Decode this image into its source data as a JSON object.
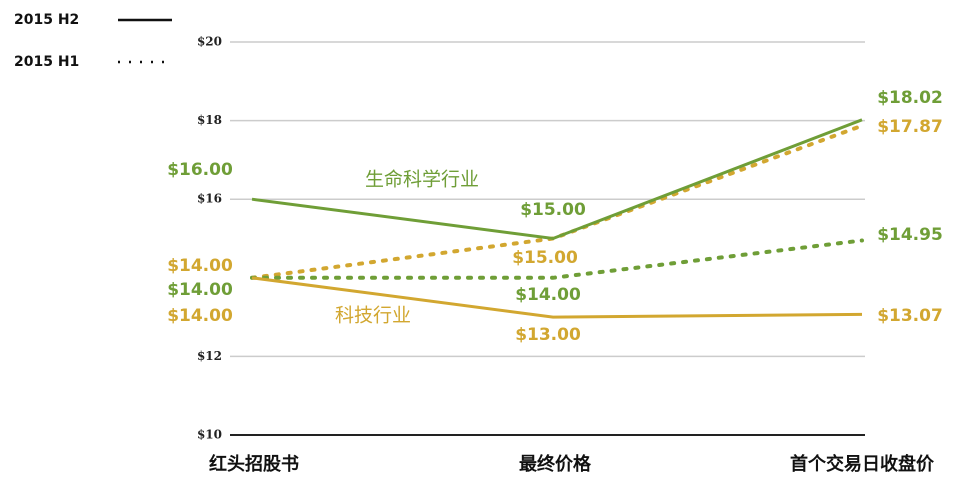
{
  "chart_data": {
    "type": "line",
    "categories": [
      "红头招股书",
      "最终价格",
      "首个交易日收盘价"
    ],
    "ylim": [
      10,
      20
    ],
    "yticks": [
      {
        "value": 10,
        "label": "$10"
      },
      {
        "value": 12,
        "label": "$12"
      },
      {
        "value": 16,
        "label": "$16"
      },
      {
        "value": 18,
        "label": "$18"
      },
      {
        "value": 20,
        "label": "$20"
      }
    ],
    "grid": true,
    "legend": [
      {
        "name": "2015 H2",
        "dash": false
      },
      {
        "name": "2015 H1",
        "dash": true
      }
    ],
    "series": [
      {
        "name": "生命科学行业",
        "color": "#6f9e37",
        "lines": [
          {
            "values": [
              16,
              15,
              18.02
            ],
            "value_labels": [
              "$16.00",
              "$15.00",
              "$18.02"
            ]
          },
          {
            "values": [
              14,
              14,
              14.95
            ],
            "value_labels": [
              "$14.00",
              "$14.00",
              "$14.95"
            ]
          }
        ]
      },
      {
        "name": "科技行业",
        "color": "#d2a730",
        "lines": [
          {
            "values": [
              14,
              13,
              13.07
            ],
            "value_labels": [
              "$14.00",
              "$13.00",
              "$13.07"
            ]
          },
          {
            "values": [
              14,
              15,
              17.87
            ],
            "value_labels": [
              "$14.00",
              "$15.00",
              "$17.87"
            ]
          }
        ]
      }
    ]
  }
}
